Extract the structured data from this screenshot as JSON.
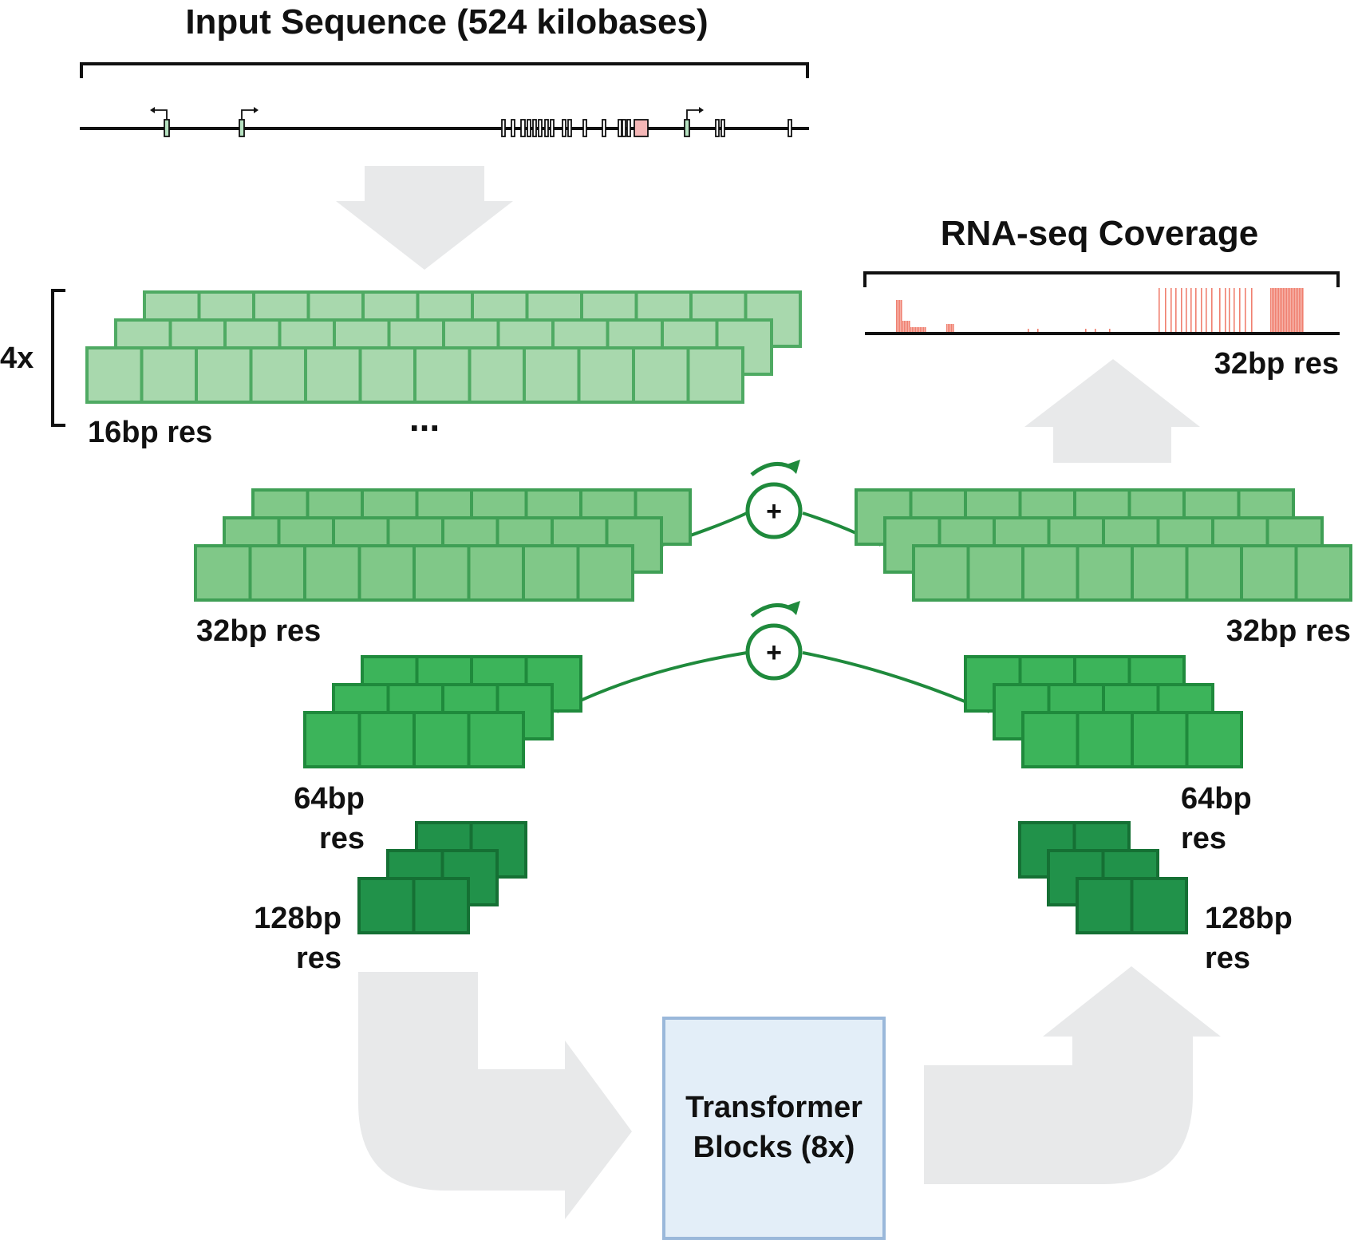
{
  "input": {
    "title": "Input Sequence (524 kilobases)"
  },
  "output": {
    "title": "RNA-seq Coverage",
    "resolution": "32bp res",
    "coverage_color": "#f08070"
  },
  "encoder": {
    "repeat_label": "4x",
    "level_16_label": "16bp res",
    "ellipsis": "...",
    "level_32_label": "32bp res",
    "level_64_line1": "64bp",
    "level_64_line2": "res",
    "level_128_line1": "128bp",
    "level_128_line2": "res"
  },
  "decoder": {
    "level_32_label": "32bp res",
    "level_64_line1": "64bp",
    "level_64_line2": "res",
    "level_128_line1": "128bp",
    "level_128_line2": "res"
  },
  "skip_connections": {
    "symbol": "+"
  },
  "transformer": {
    "line1": "Transformer",
    "line2": "Blocks (8x)"
  },
  "colors": {
    "level_16_fill": "#a8d8ad",
    "level_16_stroke": "#4faa63",
    "level_32_fill": "#80c888",
    "level_32_stroke": "#3f9f55",
    "level_64_fill": "#3cb45a",
    "level_64_stroke": "#1f8a3c",
    "level_128_fill": "#21924a",
    "level_128_stroke": "#157034",
    "skip_line": "#1f8a3c",
    "arrow_fill": "#e8e9ea",
    "transformer_fill": "#e3eef8",
    "transformer_stroke": "#9ab8da",
    "gene_line": "#111111",
    "gene_exon_green": "#b6e2c1",
    "gene_exon_pink": "#f5b7b7"
  }
}
